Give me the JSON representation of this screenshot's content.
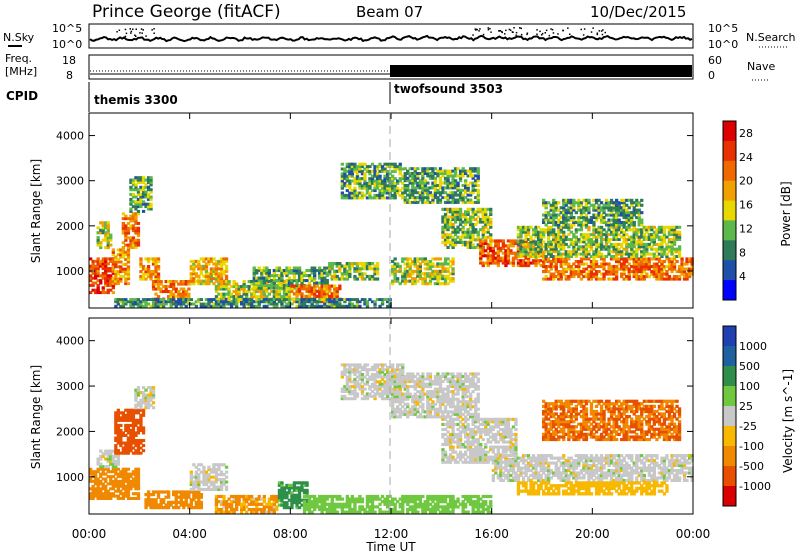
{
  "header": {
    "title": "Prince George (fitACF)",
    "beam": "Beam 07",
    "date": "10/Dec/2015"
  },
  "top_panels": {
    "sky_label": "N.Sky",
    "search_label": "N.Search",
    "freq_label_1": "Freq.",
    "freq_label_2": "[MHz]",
    "nave_label": "Nave",
    "cpid_label": "CPID",
    "noise_left_ticks": [
      "10^5",
      "10^0"
    ],
    "noise_right_ticks": [
      "10^5",
      "10^0"
    ],
    "freq_ticks": [
      "18",
      "8"
    ],
    "nave_ticks": [
      "60",
      "0"
    ],
    "cpid_modes": [
      {
        "name": "themis 3300",
        "start": 0,
        "end": 12
      },
      {
        "name": "twofsound 3503",
        "start": 12,
        "end": 24
      }
    ]
  },
  "colors": {
    "power_scale": [
      "#0000ff",
      "#1f4fa8",
      "#2e7a59",
      "#5cb84a",
      "#e8d800",
      "#f0a000",
      "#f06800",
      "#e83000",
      "#dd0000"
    ],
    "velocity_scale": [
      "#2040b0",
      "#1f60a0",
      "#2f8f4a",
      "#70c840",
      "#c8c8c8",
      "#f8b800",
      "#f08800",
      "#e85000",
      "#d80000"
    ],
    "dash_line": "#aaaaaa"
  },
  "chart_data": [
    {
      "type": "heatmap",
      "name_key": "power",
      "ylabel": "Slant Range [km]",
      "xlabel": "Time UT",
      "xlim": [
        0,
        24
      ],
      "ylim": [
        180,
        4500
      ],
      "x_ticks": [
        "00:00",
        "04:00",
        "08:00",
        "12:00",
        "16:00",
        "20:00",
        "00:00"
      ],
      "y_ticks": [
        1000,
        2000,
        3000,
        4000
      ],
      "colorbar_label": "Power [dB]",
      "colorbar_ticks": [
        4,
        8,
        12,
        16,
        20,
        24,
        28
      ],
      "colorbar_range": [
        0,
        30
      ],
      "regions": [
        {
          "t0": 0.0,
          "t1": 1.0,
          "r0": 500,
          "r1": 1300,
          "v": 26
        },
        {
          "t0": 0.9,
          "t1": 1.6,
          "r0": 700,
          "r1": 1500,
          "v": 20
        },
        {
          "t0": 0.3,
          "t1": 0.9,
          "r0": 1500,
          "r1": 2100,
          "v": 14
        },
        {
          "t0": 1.3,
          "t1": 2.0,
          "r0": 1500,
          "r1": 2300,
          "v": 22
        },
        {
          "t0": 1.6,
          "t1": 2.5,
          "r0": 2300,
          "r1": 3100,
          "v": 10
        },
        {
          "t0": 2.0,
          "t1": 2.8,
          "r0": 800,
          "r1": 1300,
          "v": 20
        },
        {
          "t0": 2.5,
          "t1": 4.0,
          "r0": 300,
          "r1": 800,
          "v": 22
        },
        {
          "t0": 4.0,
          "t1": 5.5,
          "r0": 700,
          "r1": 1300,
          "v": 18
        },
        {
          "t0": 5.0,
          "t1": 8.0,
          "r0": 300,
          "r1": 800,
          "v": 14
        },
        {
          "t0": 6.5,
          "t1": 9.5,
          "r0": 600,
          "r1": 1100,
          "v": 10
        },
        {
          "t0": 8.0,
          "t1": 10.0,
          "r0": 300,
          "r1": 700,
          "v": 22
        },
        {
          "t0": 9.5,
          "t1": 11.5,
          "r0": 800,
          "r1": 1200,
          "v": 12
        },
        {
          "t0": 10.0,
          "t1": 12.5,
          "r0": 2600,
          "r1": 3400,
          "v": 10
        },
        {
          "t0": 12.0,
          "t1": 14.5,
          "r0": 700,
          "r1": 1300,
          "v": 14
        },
        {
          "t0": 12.5,
          "t1": 15.5,
          "r0": 2500,
          "r1": 3300,
          "v": 10
        },
        {
          "t0": 14.0,
          "t1": 16.0,
          "r0": 1500,
          "r1": 2400,
          "v": 12
        },
        {
          "t0": 15.5,
          "t1": 18.0,
          "r0": 1100,
          "r1": 1700,
          "v": 24
        },
        {
          "t0": 18.0,
          "t1": 24.0,
          "r0": 800,
          "r1": 1300,
          "v": 22
        },
        {
          "t0": 17.0,
          "t1": 23.5,
          "r0": 1300,
          "r1": 2000,
          "v": 12
        },
        {
          "t0": 18.0,
          "t1": 22.0,
          "r0": 2000,
          "r1": 2600,
          "v": 10
        },
        {
          "t0": 1.0,
          "t1": 12.0,
          "r0": 200,
          "r1": 400,
          "v": 8
        }
      ]
    },
    {
      "type": "heatmap",
      "name_key": "velocity",
      "ylabel": "Slant Range [km]",
      "xlabel": "Time UT",
      "xlim": [
        0,
        24
      ],
      "ylim": [
        180,
        4500
      ],
      "x_ticks": [
        "00:00",
        "04:00",
        "08:00",
        "12:00",
        "16:00",
        "20:00",
        "00:00"
      ],
      "y_ticks": [
        1000,
        2000,
        3000,
        4000
      ],
      "colorbar_label": "Velocity [m s^-1]",
      "colorbar_ticks": [
        "1000",
        "500",
        "100",
        "25",
        "-25",
        "-100",
        "-500",
        "-1000"
      ],
      "regions": [
        {
          "t0": 0.0,
          "t1": 2.0,
          "r0": 500,
          "r1": 1200,
          "v": -300
        },
        {
          "t0": 0.3,
          "t1": 1.2,
          "r0": 1200,
          "r1": 1600,
          "v": 0
        },
        {
          "t0": 1.0,
          "t1": 2.2,
          "r0": 1500,
          "r1": 2500,
          "v": -800
        },
        {
          "t0": 1.8,
          "t1": 2.6,
          "r0": 2500,
          "r1": 3000,
          "v": 0
        },
        {
          "t0": 2.2,
          "t1": 4.5,
          "r0": 300,
          "r1": 700,
          "v": -300
        },
        {
          "t0": 4.0,
          "t1": 5.5,
          "r0": 700,
          "r1": 1300,
          "v": 0
        },
        {
          "t0": 5.0,
          "t1": 7.5,
          "r0": 200,
          "r1": 600,
          "v": -150
        },
        {
          "t0": 7.5,
          "t1": 8.7,
          "r0": 300,
          "r1": 900,
          "v": 200
        },
        {
          "t0": 8.5,
          "t1": 12.0,
          "r0": 200,
          "r1": 600,
          "v": 60
        },
        {
          "t0": 10.0,
          "t1": 12.5,
          "r0": 2700,
          "r1": 3500,
          "v": 0
        },
        {
          "t0": 12.0,
          "t1": 15.5,
          "r0": 2300,
          "r1": 3300,
          "v": 0
        },
        {
          "t0": 14.0,
          "t1": 17.0,
          "r0": 1300,
          "r1": 2300,
          "v": 0
        },
        {
          "t0": 16.0,
          "t1": 24.0,
          "r0": 900,
          "r1": 1500,
          "v": 0
        },
        {
          "t0": 17.0,
          "t1": 23.0,
          "r0": 600,
          "r1": 900,
          "v": -60
        },
        {
          "t0": 18.0,
          "t1": 23.5,
          "r0": 1800,
          "r1": 2700,
          "v": -500
        },
        {
          "t0": 12.0,
          "t1": 16.0,
          "r0": 200,
          "r1": 600,
          "v": 60
        }
      ]
    }
  ]
}
